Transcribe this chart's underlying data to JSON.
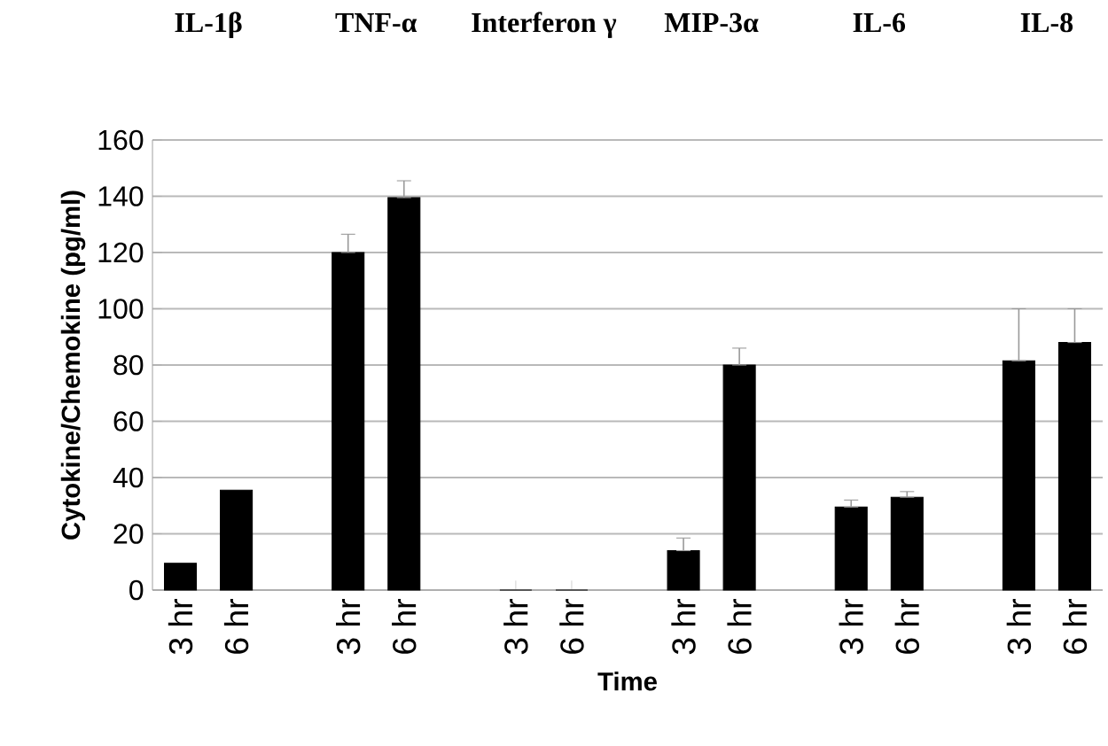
{
  "chart_data": {
    "type": "bar",
    "categories": [
      "3 hr",
      "6 hr",
      null,
      "3 hr",
      "6 hr",
      null,
      "3 hr",
      "6 hr",
      null,
      "3 hr",
      "6 hr",
      null,
      "3 hr",
      "6 hr",
      null,
      "3 hr",
      "6 hr"
    ],
    "values": [
      9.5,
      35.5,
      null,
      120,
      139.5,
      null,
      0,
      0,
      null,
      14,
      80,
      null,
      29.5,
      33,
      null,
      81.5,
      88
    ],
    "errors": [
      null,
      null,
      null,
      [
        120,
        126.5
      ],
      [
        139.5,
        145.5
      ],
      null,
      null,
      null,
      null,
      [
        14,
        18.5
      ],
      [
        80,
        86
      ],
      null,
      [
        29.5,
        32
      ],
      [
        33,
        35
      ],
      null,
      [
        81.5,
        100
      ],
      [
        88,
        100
      ]
    ],
    "color": "#000000",
    "ylim": [
      0,
      160
    ],
    "yticks": [
      0,
      20,
      40,
      60,
      80,
      100,
      120,
      140,
      160
    ],
    "grid": "y",
    "xlabel": "Time",
    "ylabel": "Cytokine/Chemokine (pg/ml)",
    "annotations": [
      "IL-1β",
      "TNF-α",
      "Interferon γ",
      "MIP-3α",
      "IL-6",
      "IL-8"
    ]
  }
}
